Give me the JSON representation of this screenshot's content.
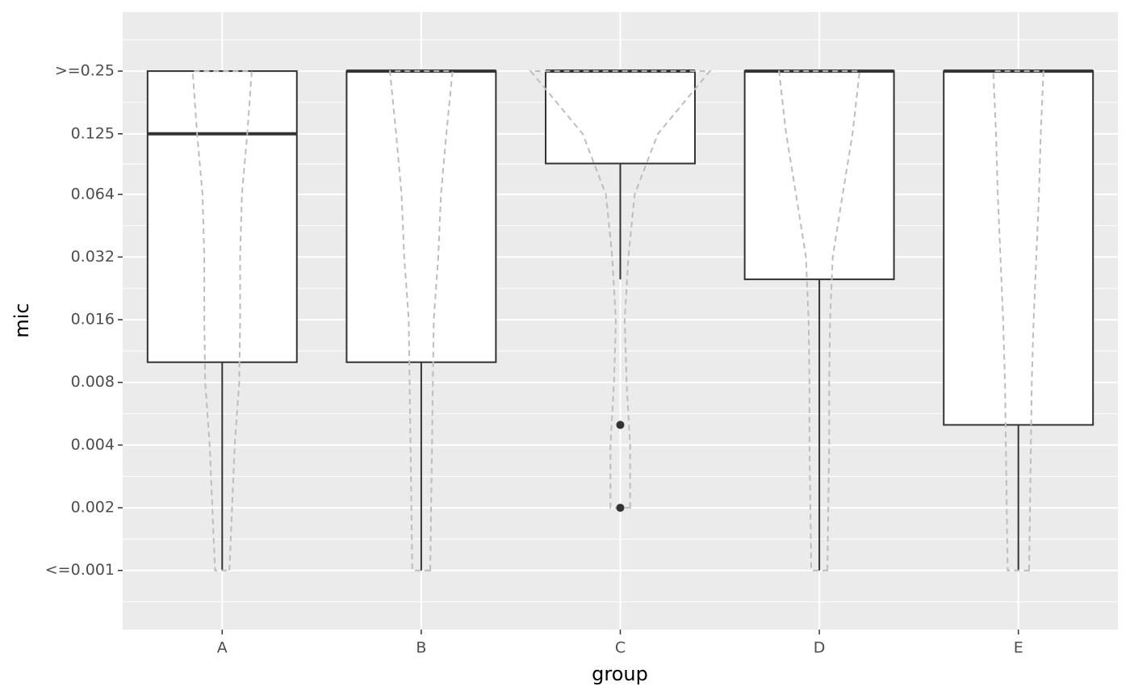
{
  "chart_data": {
    "type": "boxplot",
    "xlabel": "group",
    "ylabel": "mic",
    "categories": [
      "A",
      "B",
      "C",
      "D",
      "E"
    ],
    "boxes": [
      {
        "min": 0.001,
        "q1": 0.01,
        "median": 0.125,
        "q3": 0.25,
        "max": 0.25
      },
      {
        "min": 0.001,
        "q1": 0.01,
        "median": 0.25,
        "q3": 0.25,
        "max": 0.25
      },
      {
        "min": 0.025,
        "q1": 0.09,
        "median": 0.25,
        "q3": 0.25,
        "max": 0.25
      },
      {
        "min": 0.001,
        "q1": 0.025,
        "median": 0.25,
        "q3": 0.25,
        "max": 0.25
      },
      {
        "min": 0.001,
        "q1": 0.005,
        "median": 0.25,
        "q3": 0.25,
        "max": 0.25
      }
    ],
    "outliers": [
      [],
      [],
      [
        0.005,
        0.002
      ],
      [],
      []
    ],
    "violin_y": [
      0.001,
      0.002,
      0.004,
      0.008,
      0.016,
      0.032,
      0.064,
      0.125,
      0.25
    ],
    "violin_widths": [
      [
        0.08,
        0.11,
        0.14,
        0.19,
        0.2,
        0.2,
        0.22,
        0.28,
        0.33
      ],
      [
        0.1,
        0.11,
        0.12,
        0.13,
        0.14,
        0.19,
        0.22,
        0.28,
        0.35
      ],
      [
        null,
        0.11,
        0.11,
        0.07,
        0.05,
        0.09,
        0.16,
        0.42,
        1.0
      ],
      [
        0.09,
        0.1,
        0.11,
        0.11,
        0.12,
        0.15,
        0.26,
        0.37,
        0.45
      ],
      [
        0.12,
        0.13,
        0.14,
        0.15,
        0.17,
        0.2,
        0.23,
        0.25,
        0.28
      ]
    ],
    "log_scale": true,
    "ylim": [
      0.00052,
      0.48
    ],
    "yticks": [
      {
        "value": 0.001,
        "label": "<=0.001"
      },
      0.002,
      0.004,
      0.008,
      0.016,
      0.032,
      0.064,
      0.125,
      {
        "value": 0.25,
        "label": ">=0.25"
      }
    ],
    "grid": true
  }
}
